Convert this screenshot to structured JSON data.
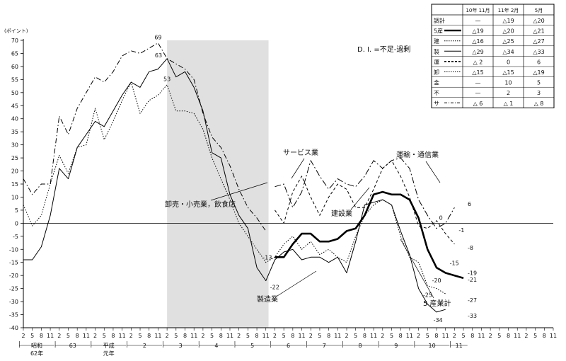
{
  "chart_data": {
    "type": "line",
    "y_unit_label": "(ポイント)",
    "ylim": [
      -40,
      70
    ],
    "y_ticks": [
      70,
      65,
      60,
      55,
      50,
      45,
      40,
      35,
      30,
      25,
      20,
      15,
      10,
      5,
      0,
      -5,
      -10,
      -15,
      -20,
      -25,
      -30,
      -35,
      -40
    ],
    "x_months": [
      "2",
      "5",
      "8",
      "11",
      "2",
      "5",
      "8",
      "11",
      "2",
      "5",
      "8",
      "11",
      "2",
      "5",
      "8",
      "11",
      "2",
      "5",
      "8",
      "11",
      "2",
      "5",
      "8",
      "11",
      "2",
      "5",
      "8",
      "11",
      "2",
      "5",
      "8",
      "11",
      "2",
      "5",
      "8",
      "11",
      "2",
      "5",
      "8",
      "11",
      "2",
      "5",
      "8",
      "11",
      "2",
      "5",
      "8",
      "11",
      "2",
      "5",
      "8",
      "11",
      "2",
      "5",
      "8",
      "11",
      "2",
      "5",
      "8",
      "11"
    ],
    "x_year_labels": [
      {
        "label": "昭和62年",
        "start": 0,
        "end": 3
      },
      {
        "label": "63",
        "start": 4,
        "end": 7
      },
      {
        "label": "平成元年",
        "start": 8,
        "end": 11
      },
      {
        "label": "2",
        "start": 12,
        "end": 15
      },
      {
        "label": "3",
        "start": 16,
        "end": 19
      },
      {
        "label": "4",
        "start": 20,
        "end": 23
      },
      {
        "label": "5",
        "start": 24,
        "end": 27
      },
      {
        "label": "6",
        "start": 28,
        "end": 31
      },
      {
        "label": "7",
        "start": 32,
        "end": 35
      },
      {
        "label": "8",
        "start": 36,
        "end": 39
      },
      {
        "label": "9",
        "start": 40,
        "end": 43
      },
      {
        "label": "10",
        "start": 44,
        "end": 47
      },
      {
        "label": "11",
        "start": 48,
        "end": 49
      }
    ],
    "shaded_range": [
      16,
      27
    ],
    "note": "D. I. =不足-過剰",
    "series": [
      {
        "name": "製造業",
        "style": "solid",
        "width": 1,
        "values": [
          -14,
          -14,
          -9,
          3,
          21,
          17,
          29,
          34,
          39,
          37,
          43,
          49,
          54,
          52,
          58,
          59,
          63,
          56,
          58,
          52,
          43,
          27,
          25,
          11,
          3,
          -2,
          -17,
          -22,
          -14,
          -11,
          -10,
          -14,
          -13,
          -13,
          -15,
          -13,
          -19,
          -7,
          7,
          8,
          9,
          7,
          -3,
          -12,
          -25,
          -31,
          -34,
          -33
        ],
        "start": 0
      },
      {
        "name": "卸売・小売業，飲食店",
        "style": "dotted",
        "width": 1,
        "values": [
          7,
          -1,
          3,
          15,
          26,
          19,
          29,
          30,
          44,
          32,
          39,
          47,
          54,
          42,
          47,
          49,
          53,
          43,
          43,
          42,
          36,
          25,
          17,
          9,
          0,
          -5,
          -10,
          -15,
          -13,
          -8,
          -5,
          -10,
          -7,
          -12,
          -10,
          -13,
          -15,
          -5,
          3,
          7,
          9,
          7,
          -5,
          -13,
          -15,
          -24,
          -25,
          -27
        ],
        "start": 0
      },
      {
        "name": "サービス業",
        "style": "dashdot",
        "width": 1,
        "values": [
          17,
          11,
          15,
          15,
          41,
          34,
          44,
          50,
          56,
          54,
          58,
          64,
          66,
          65,
          67,
          69,
          63,
          61,
          59,
          55,
          42,
          33,
          29,
          22,
          13,
          6,
          2,
          -3
        ],
        "start": 0
      },
      {
        "name": "建設業",
        "style": "dashed",
        "width": 1,
        "values": [
          5,
          0,
          12,
          18,
          10,
          3,
          10,
          15,
          13,
          6,
          6,
          13,
          21,
          24,
          18,
          10,
          -1,
          -2,
          1,
          -4,
          -8
        ],
        "start": 28
      },
      {
        "name": "運輸・通信業",
        "style": "dashdot2",
        "width": 1,
        "values": [
          14,
          15,
          6,
          12,
          24,
          18,
          13,
          17,
          15,
          14,
          18,
          24,
          21,
          24,
          25,
          21,
          9,
          3,
          -2,
          0,
          6
        ],
        "start": 28
      },
      {
        "name": "5産業計",
        "style": "solid",
        "width": 2.6,
        "values": [
          -13,
          -13,
          -8,
          -4,
          -4,
          -7,
          -7,
          -6,
          -3,
          -2,
          3,
          11,
          12,
          11,
          11,
          9,
          2,
          -10,
          -17,
          -19,
          -20,
          -21
        ],
        "start": 28
      }
    ],
    "point_labels": [
      {
        "text": "69",
        "x": 15,
        "y": 69
      },
      {
        "text": "63",
        "x": 16,
        "y": 63
      },
      {
        "text": "53",
        "x": 16,
        "y": 53
      },
      {
        "text": "-13",
        "x": 28,
        "y": -13
      },
      {
        "text": "-22",
        "x": 27,
        "y": -22
      },
      {
        "text": "-15",
        "x": 47,
        "y": -15
      },
      {
        "text": "-19",
        "x": 49,
        "y": -19
      },
      {
        "text": "-21",
        "x": 49,
        "y": -21
      },
      {
        "text": "-20",
        "x": 47,
        "y": -20
      },
      {
        "text": "-25",
        "x": 46,
        "y": -25
      },
      {
        "text": "-27",
        "x": 49,
        "y": -27
      },
      {
        "text": "-34",
        "x": 47,
        "y": -34
      },
      {
        "text": "-33",
        "x": 49,
        "y": -33
      },
      {
        "text": "0",
        "x": 47,
        "y": 0
      },
      {
        "text": "6",
        "x": 49,
        "y": 6
      },
      {
        "text": "-1",
        "x": 48,
        "y": -1
      },
      {
        "text": "-8",
        "x": 49,
        "y": -8
      }
    ],
    "table": {
      "headers": [
        "10年 11月",
        "11年 2月",
        "5月"
      ],
      "rows": [
        {
          "label": "調計",
          "values": [
            "—",
            "△19",
            "△20"
          ]
        },
        {
          "label": "5産",
          "values": [
            "△19",
            "△20",
            "△21"
          ]
        },
        {
          "label": "建",
          "values": [
            "△16",
            "△25",
            "△27"
          ]
        },
        {
          "label": "製",
          "values": [
            "△29",
            "△34",
            "△33"
          ]
        },
        {
          "label": "運",
          "values": [
            "△ 2",
            "0",
            "6"
          ]
        },
        {
          "label": "卸",
          "values": [
            "△15",
            "△15",
            "△19"
          ]
        },
        {
          "label": "金",
          "values": [
            "—",
            "10",
            "5"
          ]
        },
        {
          "label": "不",
          "values": [
            "—",
            "2",
            "3"
          ]
        },
        {
          "label": "サ",
          "values": [
            "△ 6",
            "△ 1",
            "△ 8"
          ]
        }
      ]
    },
    "annotations": [
      {
        "text": "サービス業"
      },
      {
        "text": "卸売・小売業，飲食店"
      },
      {
        "text": "建設業"
      },
      {
        "text": "運輸・通信業"
      },
      {
        "text": "製造業"
      },
      {
        "text": "5 産業計"
      }
    ]
  }
}
